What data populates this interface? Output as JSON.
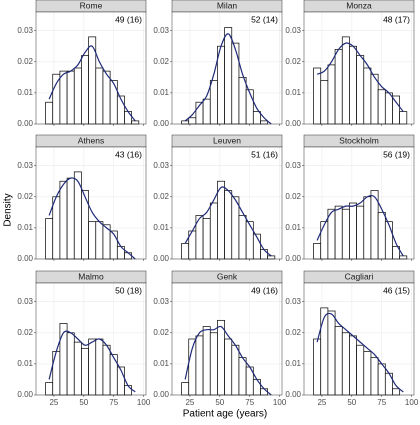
{
  "axes": {
    "xlabel": "Patient age (years)",
    "ylabel": "Density"
  },
  "chart_data": [
    {
      "type": "histogram",
      "title": "Rome",
      "annotation": "49 (16)",
      "bins": [
        18,
        24,
        30,
        36,
        42,
        48,
        54,
        60,
        66,
        72,
        78,
        84,
        90,
        96
      ],
      "values": [
        0.007,
        0.016,
        0.017,
        0.017,
        0.018,
        0.022,
        0.028,
        0.018,
        0.017,
        0.014,
        0.009,
        0.004,
        0.001
      ],
      "color": "#ffffff",
      "density": {
        "x": [
          21,
          27,
          33,
          39,
          45,
          51,
          57,
          63,
          69,
          75,
          81,
          87,
          93
        ],
        "values": [
          0.008,
          0.013,
          0.016,
          0.017,
          0.019,
          0.023,
          0.025,
          0.02,
          0.016,
          0.013,
          0.008,
          0.004,
          0.001
        ],
        "color": "#1f2a78"
      },
      "xlim": [
        10,
        102
      ],
      "xticks": [
        25,
        50,
        75,
        100
      ],
      "ylim": [
        0,
        0.036
      ],
      "yticks": [
        {
          "value": 0,
          "label": "0.00"
        },
        {
          "value": 0.01,
          "label": "0.01"
        },
        {
          "value": 0.02,
          "label": "0.02"
        },
        {
          "value": 0.03,
          "label": "0.03"
        }
      ],
      "grid": true
    },
    {
      "type": "histogram",
      "title": "Milan",
      "annotation": "52 (14)",
      "bins": [
        18,
        24,
        30,
        36,
        42,
        48,
        54,
        60,
        66,
        72,
        78,
        84,
        90,
        96
      ],
      "values": [
        0.001,
        0.002,
        0.007,
        0.008,
        0.014,
        0.025,
        0.031,
        0.026,
        0.015,
        0.011,
        0.004,
        0.001,
        0.0
      ],
      "color": "#ffffff",
      "density": {
        "x": [
          21,
          27,
          33,
          39,
          45,
          51,
          57,
          63,
          69,
          75,
          81,
          87,
          93
        ],
        "values": [
          0.001,
          0.003,
          0.006,
          0.009,
          0.016,
          0.025,
          0.029,
          0.024,
          0.016,
          0.01,
          0.005,
          0.002,
          0.0
        ],
        "color": "#1f2a78"
      },
      "xlim": [
        10,
        102
      ],
      "xticks": [
        25,
        50,
        75,
        100
      ],
      "ylim": [
        0,
        0.036
      ],
      "yticks": [
        {
          "value": 0,
          "label": "0.00"
        },
        {
          "value": 0.01,
          "label": "0.01"
        },
        {
          "value": 0.02,
          "label": "0.02"
        },
        {
          "value": 0.03,
          "label": "0.03"
        }
      ],
      "grid": true
    },
    {
      "type": "histogram",
      "title": "Monza",
      "annotation": "48 (17)",
      "bins": [
        18,
        24,
        30,
        36,
        42,
        48,
        54,
        60,
        66,
        72,
        78,
        84,
        90,
        96
      ],
      "values": [
        0.018,
        0.014,
        0.019,
        0.024,
        0.028,
        0.025,
        0.022,
        0.018,
        0.016,
        0.011,
        0.01,
        0.009,
        0.004
      ],
      "color": "#ffffff",
      "density": {
        "x": [
          21,
          27,
          33,
          39,
          45,
          51,
          57,
          63,
          69,
          75,
          81,
          87,
          93
        ],
        "values": [
          0.016,
          0.017,
          0.02,
          0.024,
          0.026,
          0.025,
          0.022,
          0.019,
          0.015,
          0.012,
          0.01,
          0.007,
          0.004
        ],
        "color": "#1f2a78"
      },
      "xlim": [
        10,
        102
      ],
      "xticks": [
        25,
        50,
        75,
        100
      ],
      "ylim": [
        0,
        0.036
      ],
      "yticks": [
        {
          "value": 0,
          "label": "0.00"
        },
        {
          "value": 0.01,
          "label": "0.01"
        },
        {
          "value": 0.02,
          "label": "0.02"
        },
        {
          "value": 0.03,
          "label": "0.03"
        }
      ],
      "grid": true
    },
    {
      "type": "histogram",
      "title": "Athens",
      "annotation": "43 (16)",
      "bins": [
        18,
        24,
        30,
        36,
        42,
        48,
        54,
        60,
        66,
        72,
        78,
        84,
        90,
        96
      ],
      "values": [
        0.013,
        0.02,
        0.025,
        0.026,
        0.028,
        0.022,
        0.012,
        0.012,
        0.011,
        0.009,
        0.004,
        0.002,
        0.0
      ],
      "color": "#ffffff",
      "density": {
        "x": [
          21,
          27,
          33,
          39,
          45,
          51,
          57,
          63,
          69,
          75,
          81,
          87,
          93
        ],
        "values": [
          0.014,
          0.02,
          0.024,
          0.026,
          0.025,
          0.02,
          0.015,
          0.012,
          0.01,
          0.008,
          0.004,
          0.002,
          0.0
        ],
        "color": "#1f2a78"
      },
      "xlim": [
        10,
        102
      ],
      "xticks": [
        25,
        50,
        75,
        100
      ],
      "ylim": [
        0,
        0.036
      ],
      "yticks": [
        {
          "value": 0,
          "label": "0.00"
        },
        {
          "value": 0.01,
          "label": "0.01"
        },
        {
          "value": 0.02,
          "label": "0.02"
        },
        {
          "value": 0.03,
          "label": "0.03"
        }
      ],
      "grid": true
    },
    {
      "type": "histogram",
      "title": "Leuven",
      "annotation": "51 (16)",
      "bins": [
        18,
        24,
        30,
        36,
        42,
        48,
        54,
        60,
        66,
        72,
        78,
        84,
        90,
        96
      ],
      "values": [
        0.005,
        0.009,
        0.014,
        0.013,
        0.018,
        0.025,
        0.022,
        0.02,
        0.014,
        0.012,
        0.008,
        0.003,
        0.001
      ],
      "color": "#ffffff",
      "density": {
        "x": [
          21,
          27,
          33,
          39,
          45,
          51,
          57,
          63,
          69,
          75,
          81,
          87,
          93
        ],
        "values": [
          0.005,
          0.009,
          0.013,
          0.015,
          0.019,
          0.023,
          0.022,
          0.019,
          0.015,
          0.011,
          0.007,
          0.003,
          0.001
        ],
        "color": "#1f2a78"
      },
      "xlim": [
        10,
        102
      ],
      "xticks": [
        25,
        50,
        75,
        100
      ],
      "ylim": [
        0,
        0.036
      ],
      "yticks": [
        {
          "value": 0,
          "label": "0.00"
        },
        {
          "value": 0.01,
          "label": "0.01"
        },
        {
          "value": 0.02,
          "label": "0.02"
        },
        {
          "value": 0.03,
          "label": "0.03"
        }
      ],
      "grid": true
    },
    {
      "type": "histogram",
      "title": "Stockholm",
      "annotation": "56 (19)",
      "bins": [
        18,
        24,
        30,
        36,
        42,
        48,
        54,
        60,
        66,
        72,
        78,
        84,
        90,
        96
      ],
      "values": [
        0.005,
        0.012,
        0.016,
        0.017,
        0.016,
        0.018,
        0.017,
        0.02,
        0.022,
        0.015,
        0.012,
        0.004,
        0.001
      ],
      "color": "#ffffff",
      "density": {
        "x": [
          21,
          27,
          33,
          39,
          45,
          51,
          57,
          63,
          69,
          75,
          81,
          87,
          93
        ],
        "values": [
          0.006,
          0.011,
          0.015,
          0.016,
          0.017,
          0.017,
          0.018,
          0.02,
          0.02,
          0.016,
          0.011,
          0.005,
          0.001
        ],
        "color": "#1f2a78"
      },
      "xlim": [
        10,
        102
      ],
      "xticks": [
        25,
        50,
        75,
        100
      ],
      "ylim": [
        0,
        0.036
      ],
      "yticks": [
        {
          "value": 0,
          "label": "0.00"
        },
        {
          "value": 0.01,
          "label": "0.01"
        },
        {
          "value": 0.02,
          "label": "0.02"
        },
        {
          "value": 0.03,
          "label": "0.03"
        }
      ],
      "grid": true
    },
    {
      "type": "histogram",
      "title": "Malmo",
      "annotation": "50 (18)",
      "bins": [
        18,
        24,
        30,
        36,
        42,
        48,
        54,
        60,
        66,
        72,
        78,
        84,
        90,
        96
      ],
      "values": [
        0.004,
        0.014,
        0.023,
        0.02,
        0.017,
        0.015,
        0.018,
        0.018,
        0.016,
        0.013,
        0.009,
        0.003,
        0.0
      ],
      "color": "#ffffff",
      "density": {
        "x": [
          21,
          27,
          33,
          39,
          45,
          51,
          57,
          63,
          69,
          75,
          81,
          87,
          93
        ],
        "values": [
          0.005,
          0.014,
          0.02,
          0.02,
          0.018,
          0.016,
          0.017,
          0.018,
          0.016,
          0.012,
          0.008,
          0.003,
          0.001
        ],
        "color": "#1f2a78"
      },
      "xlim": [
        10,
        102
      ],
      "xticks": [
        25,
        50,
        75,
        100
      ],
      "ylim": [
        0,
        0.036
      ],
      "yticks": [
        {
          "value": 0,
          "label": "0.00"
        },
        {
          "value": 0.01,
          "label": "0.01"
        },
        {
          "value": 0.02,
          "label": "0.02"
        },
        {
          "value": 0.03,
          "label": "0.03"
        }
      ],
      "grid": true
    },
    {
      "type": "histogram",
      "title": "Genk",
      "annotation": "49 (16)",
      "bins": [
        18,
        24,
        30,
        36,
        42,
        48,
        54,
        60,
        66,
        72,
        78,
        84,
        90,
        96
      ],
      "values": [
        0.004,
        0.018,
        0.019,
        0.022,
        0.02,
        0.024,
        0.018,
        0.016,
        0.012,
        0.009,
        0.005,
        0.002,
        0.0
      ],
      "color": "#ffffff",
      "density": {
        "x": [
          21,
          27,
          33,
          39,
          45,
          51,
          57,
          63,
          69,
          75,
          81,
          87,
          93
        ],
        "values": [
          0.005,
          0.015,
          0.02,
          0.021,
          0.021,
          0.022,
          0.019,
          0.016,
          0.012,
          0.009,
          0.005,
          0.002,
          0.0
        ],
        "color": "#1f2a78"
      },
      "xlim": [
        10,
        102
      ],
      "xticks": [
        25,
        50,
        75,
        100
      ],
      "ylim": [
        0,
        0.036
      ],
      "yticks": [
        {
          "value": 0,
          "label": "0.00"
        },
        {
          "value": 0.01,
          "label": "0.01"
        },
        {
          "value": 0.02,
          "label": "0.02"
        },
        {
          "value": 0.03,
          "label": "0.03"
        }
      ],
      "grid": true
    },
    {
      "type": "histogram",
      "title": "Cagliari",
      "annotation": "46 (15)",
      "bins": [
        18,
        24,
        30,
        36,
        42,
        48,
        54,
        60,
        66,
        72,
        78,
        84,
        90,
        96
      ],
      "values": [
        0.018,
        0.028,
        0.027,
        0.022,
        0.02,
        0.019,
        0.016,
        0.014,
        0.012,
        0.01,
        0.007,
        0.002,
        0.0
      ],
      "color": "#ffffff",
      "density": {
        "x": [
          21,
          27,
          33,
          39,
          45,
          51,
          57,
          63,
          69,
          75,
          81,
          87,
          93
        ],
        "values": [
          0.017,
          0.025,
          0.026,
          0.023,
          0.021,
          0.019,
          0.017,
          0.015,
          0.013,
          0.01,
          0.007,
          0.003,
          0.001
        ],
        "color": "#1f2a78"
      },
      "xlim": [
        10,
        102
      ],
      "xticks": [
        25,
        50,
        75,
        100
      ],
      "ylim": [
        0,
        0.036
      ],
      "yticks": [
        {
          "value": 0,
          "label": "0.00"
        },
        {
          "value": 0.01,
          "label": "0.01"
        },
        {
          "value": 0.02,
          "label": "0.02"
        },
        {
          "value": 0.03,
          "label": "0.03"
        }
      ],
      "grid": true
    }
  ]
}
